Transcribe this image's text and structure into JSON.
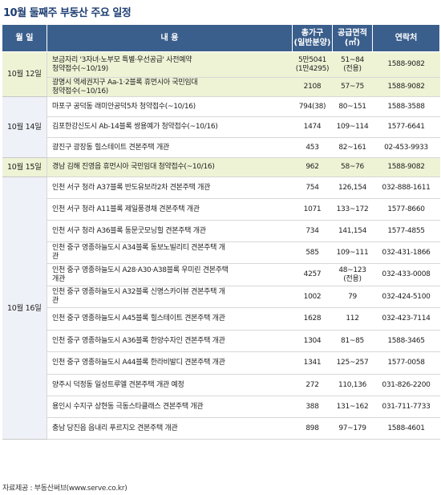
{
  "title": "10월 둘째주 부동산 주요 일정",
  "headers": [
    "월 일",
    "내 용",
    [
      "총가구",
      "(일반분양)"
    ],
    [
      "공급면적",
      "(㎡)"
    ],
    "연락처"
  ],
  "groups": [
    {
      "date": "10월 12일",
      "highlight": true,
      "rows": [
        {
          "content": "보금자리 '3자녀·노부모 특별·우선공급' 사전예약\n청약접수(~10/19)",
          "units": "5만5041\n(1만4295)",
          "area": "51~84\n(전용)",
          "phone": "1588-9082"
        },
        {
          "content": "광명시 역세권지구 Aa-1·2블록 휴먼시아 국민임대\n청약접수(~10/16)",
          "units": "2108",
          "area": "57~75",
          "phone": "1588-9082"
        }
      ]
    },
    {
      "date": "10월 14일",
      "highlight": false,
      "rows": [
        {
          "content": "마포구 공덕동 래미안공덕5차 청약접수(~10/16)",
          "units": "794(38)",
          "area": "80~151",
          "phone": "1588-3588"
        },
        {
          "content": "김포한강신도시 Ab-14블록 쌍용예가 청약접수(~10/16)",
          "units": "1474",
          "area": "109~114",
          "phone": "1577-6641"
        },
        {
          "content": "광진구 광장동 힐스테이트 견본주택 개관",
          "units": "453",
          "area": "82~161",
          "phone": "02-453-9933"
        }
      ]
    },
    {
      "date": "10월 15일",
      "highlight": true,
      "rows": [
        {
          "content": "경남 김해 진영읍 휴먼시아 국민임대 청약접수(~10/16)",
          "units": "962",
          "area": "58~76",
          "phone": "1588-9082"
        }
      ]
    },
    {
      "date": "10월 16일",
      "highlight": false,
      "rows": [
        {
          "content": "인천 서구 청라 A37블록 반도유보라2차 견본주택 개관",
          "units": "754",
          "area": "126,154",
          "phone": "032-888-1611"
        },
        {
          "content": "인천 서구 청라 A11블록 제일풍경채 견본주택 개관",
          "units": "1071",
          "area": "133~172",
          "phone": "1577-8660"
        },
        {
          "content": "인천 서구 청라 A36블록 동문굿모닝힐 견본주택 개관",
          "units": "734",
          "area": "141,154",
          "phone": "1577-4855"
        },
        {
          "content": "인천 중구 영종하늘도시 A34블록 동보노빌리티 견본주택 개\n관",
          "units": "585",
          "area": "109~111",
          "phone": "032-431-1866"
        },
        {
          "content": "인천 중구 영종하늘도시 A28·A30·A38블록 우미린 견본주택\n개관",
          "units": "4257",
          "area": "48~123\n(전용)",
          "phone": "032-433-0008"
        },
        {
          "content": "인천 중구 영종하늘도시 A32블록 신명스카이뷰 견본주택 개\n관",
          "units": "1002",
          "area": "79",
          "phone": "032-424-5100"
        },
        {
          "content": "인천 중구 영종하늘도시 A45블록 힐스테이트 견본주택 개관",
          "units": "1628",
          "area": "112",
          "phone": "032-423-7114"
        },
        {
          "content": "인천 중구 영종하늘도시 A36블록 한양수자인 견본주택 개관",
          "units": "1304",
          "area": "81~85",
          "phone": "1588-3465"
        },
        {
          "content": "인천 중구 영종하늘도시 A44블록 한라비발디 견본주택 개관",
          "units": "1341",
          "area": "125~257",
          "phone": "1577-0058"
        },
        {
          "content": "양주시 덕정동 일성트루엘 견본주택 개관 예정",
          "units": "272",
          "area": "110,136",
          "phone": "031-826-2200"
        },
        {
          "content": "용인시 수지구 상현동 극동스타클래스 견본주택 개관",
          "units": "388",
          "area": "131~162",
          "phone": "031-711-7733"
        },
        {
          "content": "충남 당진읍 읍내리 푸르지오 견본주택 개관",
          "units": "898",
          "area": "97~179",
          "phone": "1588-4601"
        }
      ]
    }
  ],
  "footer": "자료제공 : 부동산써브(www.serve.co.kr)"
}
